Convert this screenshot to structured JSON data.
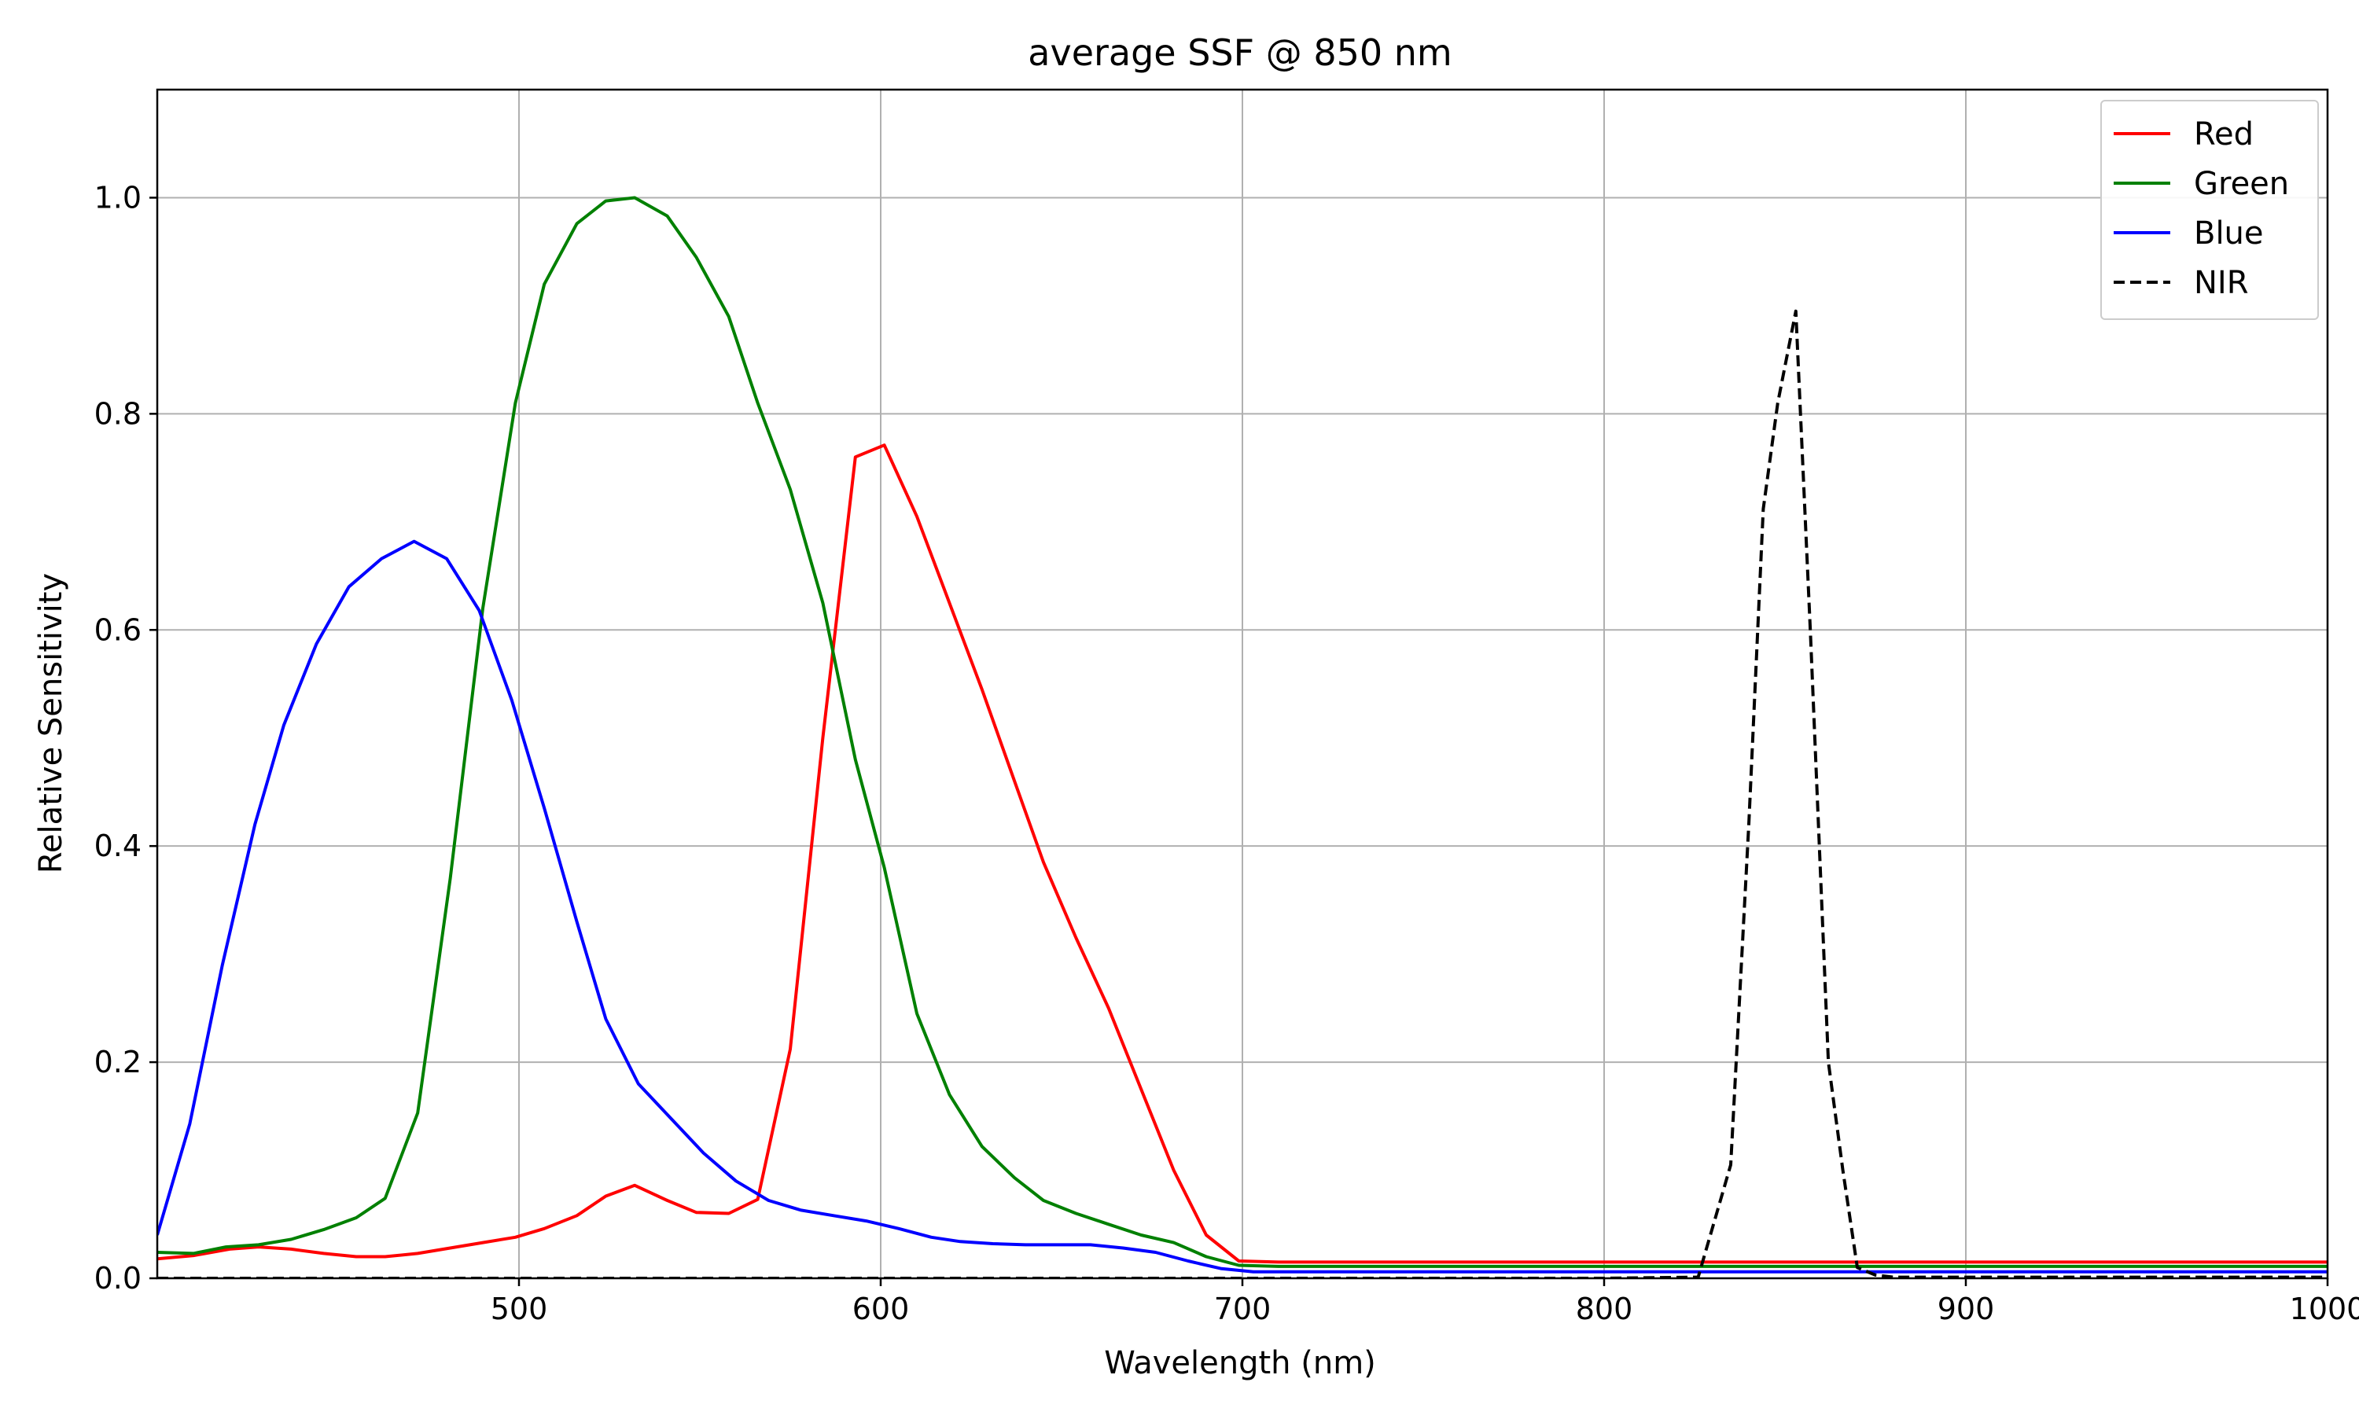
{
  "chart_data": {
    "type": "line",
    "title": "average SSF @ 850 nm",
    "xlabel": "Wavelength (nm)",
    "ylabel": "Relative Sensitivity",
    "xlim": [
      400,
      1000
    ],
    "ylim": [
      0,
      1.1
    ],
    "xticks": [
      500,
      600,
      700,
      800,
      900,
      1000
    ],
    "yticks": [
      0.0,
      0.2,
      0.4,
      0.6,
      0.8,
      1.0
    ],
    "xtick_labels": [
      "500",
      "600",
      "700",
      "800",
      "900",
      "1000"
    ],
    "ytick_labels": [
      "0.0",
      "0.2",
      "0.4",
      "0.6",
      "0.8",
      "1.0"
    ],
    "grid": true,
    "legend_position": "top-right",
    "series": [
      {
        "name": "Red",
        "color": "#ff0000",
        "style": "solid",
        "x": [
          400,
          410,
          420,
          428,
          437,
          446,
          455,
          463,
          472,
          481,
          490,
          499,
          507,
          516,
          524,
          532,
          541,
          549,
          558,
          566,
          575,
          584,
          593,
          601,
          610,
          619,
          628,
          637,
          645,
          654,
          663,
          672,
          681,
          690,
          699,
          710,
          750,
          800,
          850,
          900,
          950,
          1000
        ],
        "y": [
          0.018,
          0.021,
          0.027,
          0.029,
          0.027,
          0.023,
          0.02,
          0.02,
          0.023,
          0.028,
          0.033,
          0.038,
          0.046,
          0.058,
          0.076,
          0.086,
          0.072,
          0.061,
          0.06,
          0.073,
          0.212,
          0.5,
          0.76,
          0.771,
          0.705,
          0.625,
          0.545,
          0.46,
          0.385,
          0.315,
          0.25,
          0.175,
          0.1,
          0.04,
          0.016,
          0.015,
          0.015,
          0.015,
          0.015,
          0.015,
          0.015,
          0.015
        ]
      },
      {
        "name": "Green",
        "color": "#008000",
        "style": "solid",
        "x": [
          400,
          410,
          419,
          428,
          437,
          446,
          455,
          463,
          472,
          481,
          490,
          499,
          507,
          516,
          524,
          532,
          541,
          549,
          558,
          566,
          575,
          584,
          593,
          601,
          610,
          619,
          628,
          637,
          645,
          654,
          663,
          672,
          681,
          690,
          699,
          710,
          750,
          800,
          850,
          900,
          950,
          1000
        ],
        "y": [
          0.024,
          0.023,
          0.029,
          0.031,
          0.036,
          0.045,
          0.056,
          0.074,
          0.153,
          0.37,
          0.62,
          0.81,
          0.92,
          0.976,
          0.997,
          1.0,
          0.983,
          0.945,
          0.89,
          0.81,
          0.73,
          0.625,
          0.48,
          0.38,
          0.245,
          0.17,
          0.122,
          0.093,
          0.072,
          0.06,
          0.05,
          0.04,
          0.033,
          0.02,
          0.012,
          0.011,
          0.011,
          0.011,
          0.011,
          0.011,
          0.011,
          0.011
        ]
      },
      {
        "name": "Blue",
        "color": "#0000ff",
        "style": "solid",
        "x": [
          400,
          409,
          418,
          427,
          435,
          444,
          453,
          462,
          471,
          480,
          489,
          498,
          507,
          516,
          524,
          533,
          542,
          551,
          560,
          569,
          578,
          587,
          596,
          605,
          614,
          622,
          631,
          640,
          649,
          658,
          667,
          676,
          685,
          694,
          703,
          750,
          800,
          850,
          900,
          950,
          1000
        ],
        "y": [
          0.04,
          0.143,
          0.29,
          0.42,
          0.512,
          0.587,
          0.64,
          0.666,
          0.682,
          0.666,
          0.618,
          0.535,
          0.435,
          0.33,
          0.24,
          0.18,
          0.148,
          0.116,
          0.09,
          0.072,
          0.063,
          0.058,
          0.053,
          0.046,
          0.038,
          0.034,
          0.032,
          0.031,
          0.031,
          0.031,
          0.028,
          0.024,
          0.016,
          0.009,
          0.006,
          0.006,
          0.006,
          0.006,
          0.006,
          0.006,
          0.006
        ]
      },
      {
        "name": "NIR",
        "color": "#000000",
        "style": "dashed",
        "x": [
          400,
          500,
          600,
          700,
          800,
          826,
          835,
          840,
          844,
          848,
          853,
          857,
          862,
          866,
          870,
          875,
          880,
          900,
          950,
          1000
        ],
        "y": [
          0.0,
          0.0,
          0.0,
          0.0,
          0.0,
          0.001,
          0.105,
          0.42,
          0.712,
          0.81,
          0.895,
          0.6,
          0.2,
          0.1,
          0.01,
          0.003,
          0.001,
          0.001,
          0.001,
          0.001
        ]
      }
    ]
  }
}
